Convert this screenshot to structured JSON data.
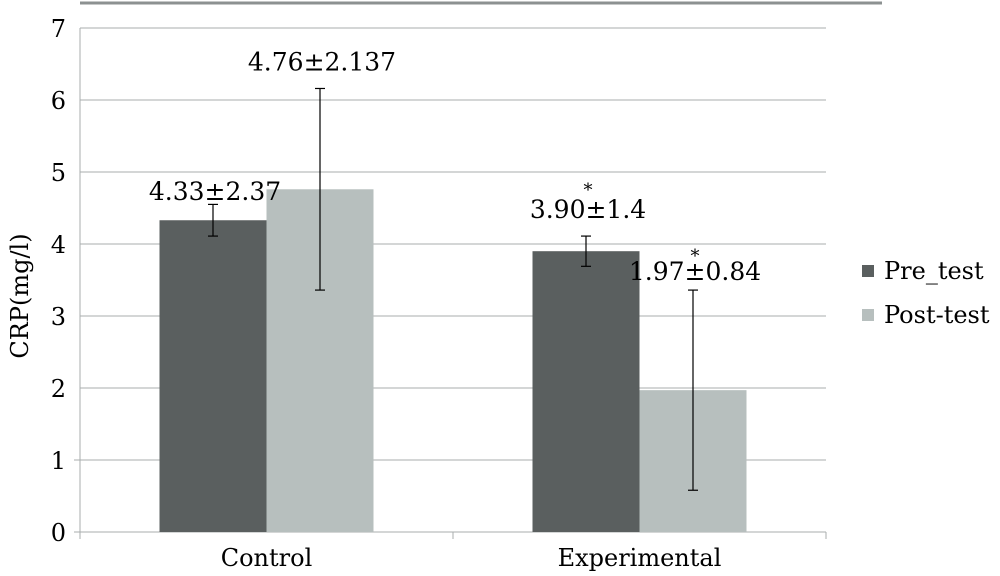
{
  "chart_data": {
    "type": "bar",
    "categories": [
      "Control",
      "Experimental"
    ],
    "series": [
      {
        "name": "Pre_test",
        "values": [
          4.33,
          3.9
        ],
        "error_bar": [
          0.22,
          0.21
        ],
        "labels": [
          "4.33±2.37",
          "3.90±1.4"
        ],
        "markers": [
          "",
          "*"
        ],
        "color": "#5a5f5f"
      },
      {
        "name": "Post-test",
        "values": [
          4.76,
          1.97
        ],
        "error_bar": [
          1.4,
          1.39
        ],
        "labels": [
          "4.76±2.137",
          "1.97±0.84"
        ],
        "markers": [
          "",
          "*"
        ],
        "color": "#b7bfbe"
      }
    ],
    "ylabel": "CRP(mg/l)",
    "xlabel": "",
    "ylim": [
      0,
      7
    ],
    "yticks": [
      "0",
      "1",
      "2",
      "3",
      "4",
      "5",
      "6",
      "7"
    ],
    "grid": true,
    "legend_position": "right"
  }
}
